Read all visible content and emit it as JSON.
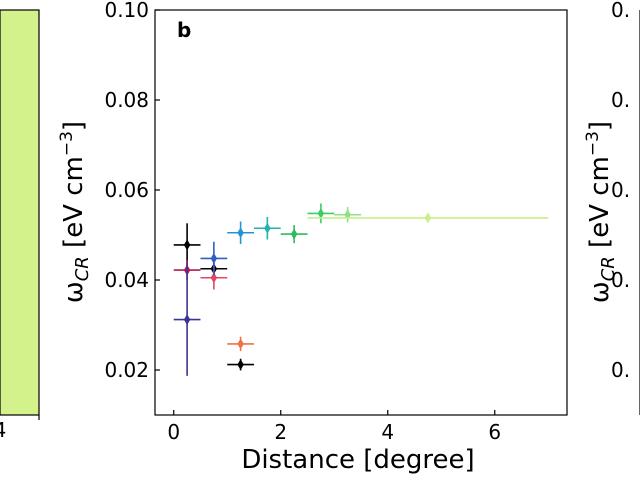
{
  "chart_data": {
    "type": "scatter",
    "panel_label": "b",
    "title": "",
    "xlabel": "Distance [degree]",
    "ylabel_main": "ω",
    "ylabel_sub": "CR",
    "ylabel_unit_pre": " [eV cm",
    "ylabel_unit_sup": "−3",
    "ylabel_unit_post": "]",
    "xlim": [
      -0.35,
      7.35
    ],
    "ylim": [
      0.01,
      0.1
    ],
    "xticks": [
      0,
      2,
      4,
      6
    ],
    "xtick_labels": [
      "0",
      "2",
      "4",
      "6"
    ],
    "yticks": [
      0.02,
      0.04,
      0.06,
      0.08,
      0.1
    ],
    "ytick_labels": [
      "0.02",
      "0.04",
      "0.06",
      "0.08",
      "0.10"
    ],
    "grid": false,
    "series": [
      {
        "color": "#000000",
        "points": [
          {
            "x": 0.25,
            "y": 0.0478,
            "xerr": 0.25,
            "yerr": 0.0048
          },
          {
            "x": 0.75,
            "y": 0.0425,
            "xerr": 0.25,
            "yerr": 0.0016
          },
          {
            "x": 1.25,
            "y": 0.0212,
            "xerr": 0.25,
            "yerr": 0.0013
          }
        ]
      },
      {
        "color": "#b5164f",
        "points": [
          {
            "x": 0.25,
            "y": 0.0422,
            "xerr": 0.25,
            "yerr": 0.0022
          }
        ]
      },
      {
        "color": "#3a3594",
        "points": [
          {
            "x": 0.25,
            "y": 0.0312,
            "xerr": 0.25,
            "yerr": 0.0125
          }
        ]
      },
      {
        "color": "#e04763",
        "points": [
          {
            "x": 0.75,
            "y": 0.0405,
            "xerr": 0.25,
            "yerr": 0.0026
          }
        ]
      },
      {
        "color": "#2f5fc0",
        "points": [
          {
            "x": 0.75,
            "y": 0.0448,
            "xerr": 0.25,
            "yerr": 0.0037
          }
        ]
      },
      {
        "color": "#f07048",
        "points": [
          {
            "x": 1.25,
            "y": 0.0258,
            "xerr": 0.25,
            "yerr": 0.0016
          }
        ]
      },
      {
        "color": "#2196d6",
        "points": [
          {
            "x": 1.25,
            "y": 0.0505,
            "xerr": 0.25,
            "yerr": 0.0025
          }
        ]
      },
      {
        "color": "#20b3b0",
        "points": [
          {
            "x": 1.75,
            "y": 0.0515,
            "xerr": 0.25,
            "yerr": 0.0025
          }
        ]
      },
      {
        "color": "#2eba5e",
        "points": [
          {
            "x": 2.25,
            "y": 0.0502,
            "xerr": 0.25,
            "yerr": 0.002
          }
        ]
      },
      {
        "color": "#3dcc6a",
        "points": [
          {
            "x": 2.75,
            "y": 0.0548,
            "xerr": 0.25,
            "yerr": 0.0022
          }
        ]
      },
      {
        "color": "#8fe088",
        "points": [
          {
            "x": 3.25,
            "y": 0.0545,
            "xerr": 0.25,
            "yerr": 0.0017
          }
        ]
      },
      {
        "color": "#c9ee8a",
        "points": [
          {
            "x": 4.75,
            "y": 0.0538,
            "xerr": 2.25,
            "yerr": 0.0008
          }
        ]
      }
    ]
  },
  "left_neighbor": {
    "fill_color": "#d4f28c",
    "tick_label": "4"
  },
  "right_neighbor": {
    "tick_labels": [
      "0.",
      "0.",
      "0.",
      "0.",
      "0."
    ],
    "ylabel_main": "ω",
    "ylabel_sub": "CR",
    "ylabel_unit_pre": " [eV cm",
    "ylabel_unit_sup": "−3",
    "ylabel_unit_post": "]"
  }
}
